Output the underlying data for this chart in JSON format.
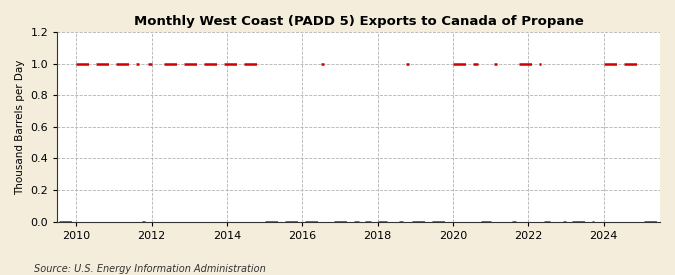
{
  "title": "Monthly West Coast (PADD 5) Exports to Canada of Propane",
  "ylabel": "Thousand Barrels per Day",
  "source": "Source: U.S. Energy Information Administration",
  "background_color": "#f5eddb",
  "plot_background_color": "#ffffff",
  "line_color": "#cc0000",
  "grid_color": "#aaaaaa",
  "ylim": [
    0.0,
    1.2
  ],
  "yticks": [
    0.0,
    0.2,
    0.4,
    0.6,
    0.8,
    1.0,
    1.2
  ],
  "xlim_start": 2009.5,
  "xlim_end": 2025.5,
  "xticks": [
    2010,
    2012,
    2014,
    2016,
    2018,
    2020,
    2022,
    2024
  ],
  "data": {
    "2009": [
      0,
      0,
      0,
      0,
      0,
      0,
      0,
      0,
      0,
      0,
      0,
      0
    ],
    "2010": [
      1,
      1,
      1,
      1,
      1,
      1,
      1,
      1,
      1,
      1,
      1,
      1
    ],
    "2011": [
      1,
      1,
      1,
      1,
      1,
      1,
      1,
      1,
      1,
      0,
      0,
      1
    ],
    "2012": [
      1,
      0,
      1,
      0,
      1,
      1,
      1,
      1,
      1,
      1,
      1,
      1
    ],
    "2013": [
      1,
      1,
      1,
      1,
      1,
      1,
      1,
      1,
      1,
      1,
      1,
      1
    ],
    "2014": [
      1,
      1,
      1,
      1,
      1,
      1,
      1,
      1,
      1,
      1,
      1,
      1
    ],
    "2015": [
      0,
      0,
      0,
      0,
      0,
      0,
      0,
      0,
      0,
      0,
      0,
      0
    ],
    "2016": [
      0,
      0,
      0,
      0,
      0,
      0,
      1,
      1,
      0,
      1,
      0,
      0
    ],
    "2017": [
      0,
      0,
      0,
      0,
      0,
      0,
      0,
      1,
      0,
      0,
      0,
      1
    ],
    "2018": [
      0,
      0,
      0,
      0,
      1,
      0,
      1,
      0,
      0,
      1,
      1,
      0
    ],
    "2019": [
      0,
      0,
      0,
      0,
      0,
      0,
      0,
      0,
      0,
      0,
      0,
      0
    ],
    "2020": [
      1,
      1,
      1,
      1,
      1,
      1,
      1,
      1,
      1,
      0,
      0,
      0
    ],
    "2021": [
      0,
      1,
      1,
      0,
      1,
      0,
      1,
      0,
      0,
      1,
      1,
      1
    ],
    "2022": [
      1,
      1,
      1,
      1,
      1,
      0,
      0,
      0,
      1,
      0,
      1,
      0
    ],
    "2023": [
      0,
      1,
      0,
      0,
      0,
      0,
      0,
      0,
      0,
      0,
      1,
      0
    ],
    "2024": [
      1,
      1,
      1,
      1,
      1,
      1,
      1,
      1,
      1,
      1,
      1,
      1
    ],
    "2025": [
      1,
      0,
      0,
      0,
      0,
      0,
      0,
      0,
      0,
      0,
      0,
      0
    ]
  }
}
